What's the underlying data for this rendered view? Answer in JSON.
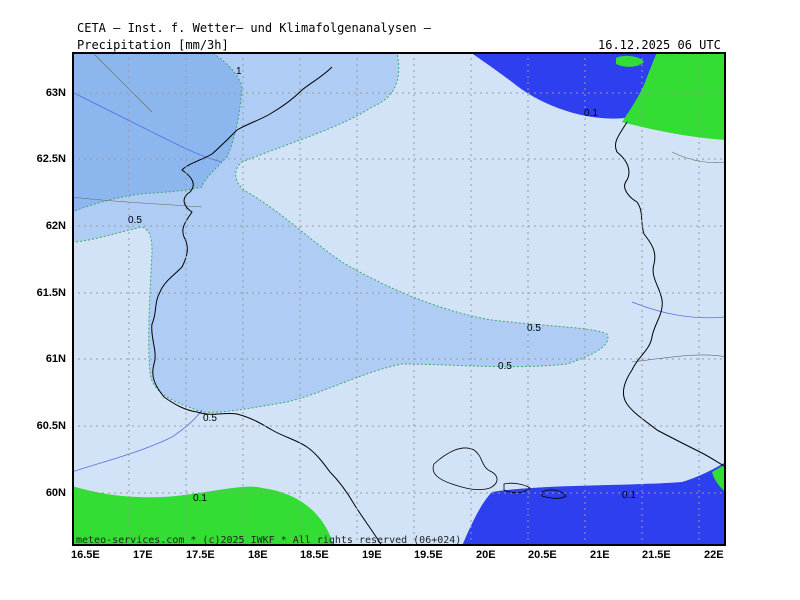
{
  "header": {
    "title": "CETA — Inst. f. Wetter— und Klimafolgenanalysen —",
    "parameter": "Precipitation [mm/3h]",
    "valid_time": "16.12.2025 06 UTC"
  },
  "footer": {
    "credit": "meteo-services.com * (c)2025 IWKF * All rights reserved (06+024)"
  },
  "axes": {
    "lat_ticks": [
      "63N",
      "62.5N",
      "62N",
      "61.5N",
      "61N",
      "60.5N",
      "60N"
    ],
    "lon_ticks": [
      "16.5E",
      "17E",
      "17.5E",
      "18E",
      "18.5E",
      "19E",
      "19.5E",
      "20E",
      "20.5E",
      "21E",
      "21.5E",
      "22E"
    ]
  },
  "contours": {
    "labels": [
      "1",
      "0.5",
      "0.1",
      "0.5",
      "0.5",
      "0.5",
      "0.1",
      "0.1"
    ]
  },
  "colors": {
    "precip_0_1": "#d2e3f8",
    "precip_0_5": "#afcdf4",
    "precip_1": "#8cb6ee",
    "dry_land": "#33dd33",
    "dry_sea": "#2e3ff0",
    "coastline": "#000000",
    "grid": "#9a9a9a"
  }
}
